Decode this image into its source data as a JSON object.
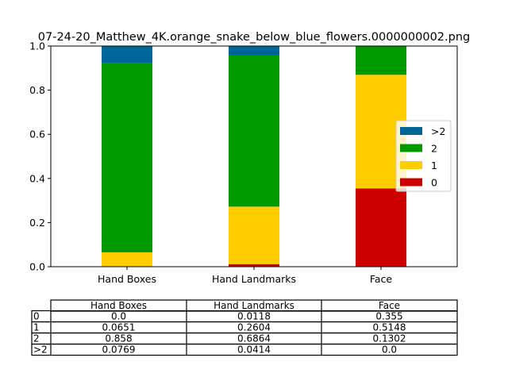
{
  "chart_data": {
    "type": "bar",
    "stacked": true,
    "title": "07-24-20_Matthew_4K.orange_snake_below_blue_flowers.0000000002.png",
    "categories": [
      "Hand Boxes",
      "Hand Landmarks",
      "Face"
    ],
    "ylim": [
      0,
      1
    ],
    "yticks": [
      "0.0",
      "0.2",
      "0.4",
      "0.6",
      "0.8",
      "1.0"
    ],
    "grid": false,
    "legend_position": "right",
    "series": [
      {
        "name": "0",
        "color": "#cc0000",
        "values": [
          0.0,
          0.0118,
          0.355
        ]
      },
      {
        "name": "1",
        "color": "#ffcc00",
        "values": [
          0.0651,
          0.2604,
          0.5148
        ]
      },
      {
        "name": "2",
        "color": "#009900",
        "values": [
          0.858,
          0.6864,
          0.1302
        ]
      },
      {
        "name": ">2",
        "color": "#006699",
        "values": [
          0.0769,
          0.0414,
          0.0
        ]
      }
    ],
    "table": {
      "columns": [
        "Hand Boxes",
        "Hand Landmarks",
        "Face"
      ],
      "rows": [
        {
          "label": "0",
          "cells": [
            "0.0",
            "0.0118",
            "0.355"
          ]
        },
        {
          "label": "1",
          "cells": [
            "0.0651",
            "0.2604",
            "0.5148"
          ]
        },
        {
          "label": "2",
          "cells": [
            "0.858",
            "0.6864",
            "0.1302"
          ]
        },
        {
          "label": ">2",
          "cells": [
            "0.0769",
            "0.0414",
            "0.0"
          ]
        }
      ]
    }
  }
}
